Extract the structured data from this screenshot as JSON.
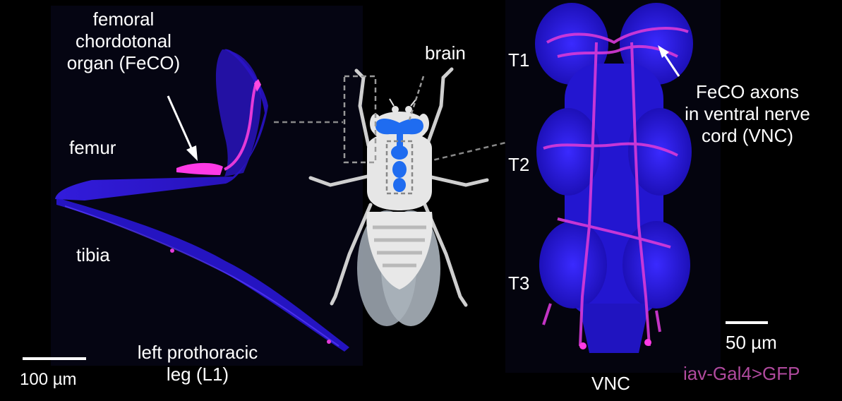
{
  "leg_panel": {
    "title_line1": "femoral",
    "title_line2": "chordotonal",
    "title_line3": "organ (FeCO)",
    "femur": "femur",
    "tibia": "tibia",
    "leg_line1": "left prothoracic",
    "leg_line2": "leg (L1)",
    "scalebar": "100 µm"
  },
  "fly_panel": {
    "brain": "brain"
  },
  "vnc_panel": {
    "t1": "T1",
    "t2": "T2",
    "t3": "T3",
    "axons_line1": "FeCO axons",
    "axons_line2": "in ventral nerve",
    "axons_line3": "cord (VNC)",
    "vnc": "VNC",
    "scalebar": "50 µm",
    "genotype": "iav-Gal4>GFP"
  },
  "colors": {
    "gfp": "#e23ad8",
    "dapi": "#2b1cff",
    "brain_blue": "#1f6cf0",
    "genotype_text": "#b04a9e"
  }
}
